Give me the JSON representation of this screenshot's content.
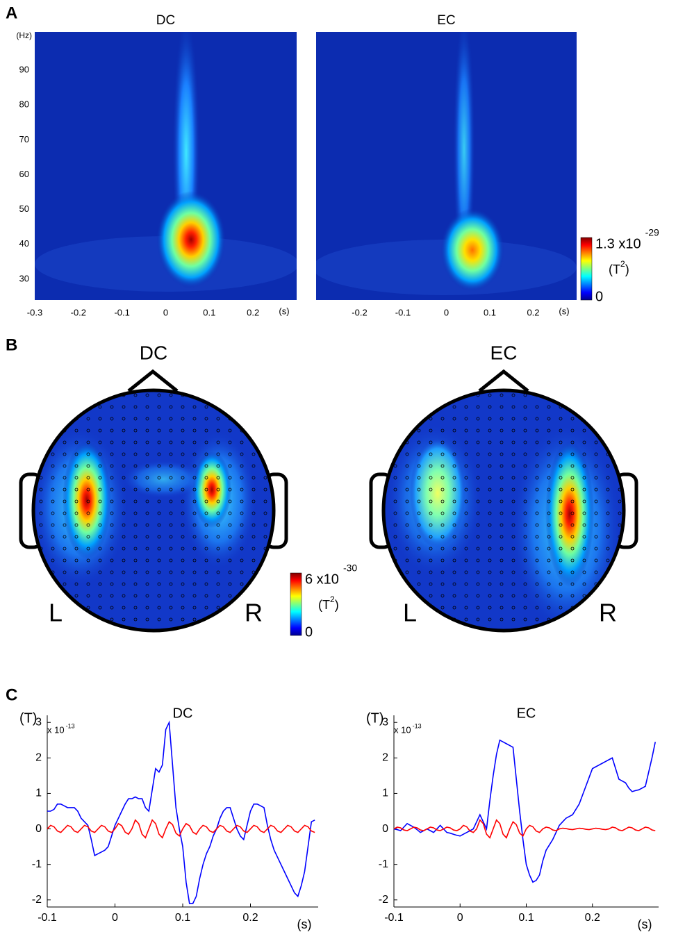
{
  "panel_labels": [
    "A",
    "B",
    "C"
  ],
  "chart_data": [
    {
      "type": "heatmap",
      "title": "DC",
      "xlim": [
        -0.3,
        0.3
      ],
      "ylim": [
        24,
        101
      ],
      "xticks": [
        -0.3,
        -0.2,
        -0.1,
        0,
        0.1,
        0.2
      ],
      "yticks": [
        30,
        40,
        50,
        60,
        70,
        80,
        90
      ],
      "xlabel": "(s)",
      "ylabel": "(Hz)"
    },
    {
      "type": "heatmap",
      "title": "EC",
      "xlim": [
        -0.3,
        0.3
      ],
      "ylim": [
        24,
        101
      ],
      "xticks": [
        -0.2,
        -0.1,
        0,
        0.1,
        0.2
      ],
      "xlabel": "(s)",
      "colorbar": {
        "max_label": "1.3 x10",
        "max_exponent": "-29",
        "unit": "(T",
        "unit_exponent": "2",
        "unit_close": ")",
        "min": 0
      }
    },
    {
      "type": "topomap",
      "title": "DC",
      "left_label": "L",
      "right_label": "R",
      "colorbar": {
        "max_label": "6 x10",
        "max_exponent": "-30",
        "unit": "(T",
        "unit_exponent": "2",
        "unit_close": ")",
        "min": 0
      }
    },
    {
      "type": "topomap",
      "title": "EC",
      "left_label": "L",
      "right_label": "R"
    },
    {
      "type": "line",
      "title": "DC",
      "ylabel": "(T)",
      "scale": "x 10",
      "scale_exponent": "-13",
      "xlabel": "(s)",
      "xlim": [
        -0.1,
        0.3
      ],
      "ylim": [
        -2.2,
        3.2
      ],
      "xticks": [
        -0.1,
        0,
        0.1,
        0.2
      ],
      "yticks": [
        -2,
        -1,
        0,
        1,
        2,
        3
      ],
      "x": [
        -0.1,
        -0.095,
        -0.09,
        -0.085,
        -0.08,
        -0.075,
        -0.07,
        -0.065,
        -0.06,
        -0.055,
        -0.05,
        -0.045,
        -0.04,
        -0.035,
        -0.03,
        -0.025,
        -0.02,
        -0.015,
        -0.01,
        -0.005,
        0,
        0.005,
        0.01,
        0.015,
        0.02,
        0.025,
        0.03,
        0.035,
        0.04,
        0.045,
        0.05,
        0.055,
        0.06,
        0.065,
        0.07,
        0.075,
        0.08,
        0.085,
        0.09,
        0.095,
        0.1,
        0.105,
        0.11,
        0.115,
        0.12,
        0.125,
        0.13,
        0.135,
        0.14,
        0.145,
        0.15,
        0.155,
        0.16,
        0.165,
        0.17,
        0.175,
        0.18,
        0.185,
        0.19,
        0.195,
        0.2,
        0.205,
        0.21,
        0.215,
        0.22,
        0.225,
        0.23,
        0.235,
        0.24,
        0.245,
        0.25,
        0.255,
        0.26,
        0.265,
        0.27,
        0.275,
        0.28,
        0.285,
        0.29,
        0.295
      ],
      "series": [
        {
          "color": "#0000ff",
          "values": [
            0.5,
            0.5,
            0.55,
            0.7,
            0.7,
            0.65,
            0.6,
            0.6,
            0.6,
            0.5,
            0.3,
            0.2,
            0.1,
            -0.3,
            -0.75,
            -0.7,
            -0.65,
            -0.6,
            -0.5,
            -0.2,
            0.1,
            0.3,
            0.5,
            0.7,
            0.85,
            0.85,
            0.9,
            0.85,
            0.85,
            0.6,
            0.5,
            1.1,
            1.7,
            1.6,
            1.8,
            2.8,
            3.0,
            1.8,
            0.6,
            0,
            -0.5,
            -1.5,
            -2.1,
            -2.1,
            -1.9,
            -1.4,
            -1.0,
            -0.7,
            -0.5,
            -0.2,
            0,
            0.3,
            0.5,
            0.6,
            0.6,
            0.3,
            0,
            -0.2,
            -0.3,
            0.1,
            0.5,
            0.7,
            0.7,
            0.65,
            0.6,
            0.1,
            -0.3,
            -0.6,
            -0.8,
            -1.0,
            -1.2,
            -1.4,
            -1.6,
            -1.8,
            -1.9,
            -1.6,
            -1.2,
            -0.5,
            0.2,
            0.25
          ]
        },
        {
          "color": "#ff0000",
          "values": [
            0,
            0.1,
            0.06,
            -0.06,
            -0.1,
            0,
            0.1,
            0.06,
            -0.06,
            -0.1,
            0,
            0.1,
            0.06,
            -0.06,
            -0.1,
            0,
            0.1,
            0.06,
            -0.06,
            -0.1,
            0,
            0.15,
            0.09,
            -0.09,
            -0.15,
            0,
            0.25,
            0.15,
            -0.15,
            -0.25,
            0,
            0.25,
            0.15,
            -0.15,
            -0.25,
            0,
            0.2,
            0.12,
            -0.12,
            -0.2,
            0,
            0.15,
            0.09,
            -0.09,
            -0.15,
            0,
            0.1,
            0.06,
            -0.06,
            -0.1,
            0,
            0.1,
            0.06,
            -0.06,
            -0.1,
            0,
            0.1,
            0.06,
            -0.06,
            -0.1,
            0,
            0.1,
            0.06,
            -0.06,
            -0.1,
            0,
            0.1,
            0.06,
            -0.06,
            -0.1,
            0,
            0.1,
            0.06,
            -0.06,
            -0.1,
            0,
            0.1,
            0.06,
            -0.06,
            -0.1
          ]
        }
      ]
    },
    {
      "type": "line",
      "title": "EC",
      "ylabel": "(T)",
      "scale": "x 10",
      "scale_exponent": "-13",
      "xlabel": "(s)",
      "xlim": [
        -0.1,
        0.3
      ],
      "ylim": [
        -2.2,
        3.2
      ],
      "xticks": [
        -0.1,
        0,
        0.1,
        0.2
      ],
      "yticks": [
        -2,
        -1,
        0,
        1,
        2,
        3
      ],
      "x": [
        -0.1,
        -0.095,
        -0.09,
        -0.085,
        -0.08,
        -0.075,
        -0.07,
        -0.065,
        -0.06,
        -0.055,
        -0.05,
        -0.045,
        -0.04,
        -0.035,
        -0.03,
        -0.025,
        -0.02,
        -0.015,
        -0.01,
        -0.005,
        0,
        0.005,
        0.01,
        0.015,
        0.02,
        0.025,
        0.03,
        0.035,
        0.04,
        0.045,
        0.05,
        0.055,
        0.06,
        0.065,
        0.07,
        0.075,
        0.08,
        0.085,
        0.09,
        0.095,
        0.1,
        0.105,
        0.11,
        0.115,
        0.12,
        0.125,
        0.13,
        0.135,
        0.14,
        0.145,
        0.15,
        0.155,
        0.16,
        0.165,
        0.17,
        0.175,
        0.18,
        0.185,
        0.19,
        0.195,
        0.2,
        0.205,
        0.21,
        0.215,
        0.22,
        0.225,
        0.23,
        0.235,
        0.24,
        0.245,
        0.25,
        0.255,
        0.26,
        0.265,
        0.27,
        0.275,
        0.28,
        0.285,
        0.29,
        0.295
      ],
      "series": [
        {
          "color": "#0000ff",
          "values": [
            0,
            -0.02,
            -0.05,
            0.05,
            0.15,
            0.1,
            0.05,
            -0.02,
            -0.1,
            -0.05,
            0,
            -0.05,
            -0.1,
            0,
            0.1,
            0,
            -0.1,
            -0.12,
            -0.15,
            -0.18,
            -0.2,
            -0.15,
            -0.1,
            -0.05,
            0,
            0.2,
            0.4,
            0.2,
            0,
            0.8,
            1.5,
            2.1,
            2.5,
            2.45,
            2.4,
            2.35,
            2.3,
            1.4,
            0.5,
            -0.3,
            -1.0,
            -1.3,
            -1.5,
            -1.45,
            -1.3,
            -0.9,
            -0.6,
            -0.45,
            -0.3,
            -0.1,
            0.1,
            0.2,
            0.3,
            0.35,
            0.4,
            0.55,
            0.7,
            0.95,
            1.2,
            1.45,
            1.7,
            1.75,
            1.8,
            1.85,
            1.9,
            1.95,
            2.0,
            1.7,
            1.4,
            1.35,
            1.3,
            1.15,
            1.05,
            1.08,
            1.1,
            1.15,
            1.2,
            1.6,
            2.0,
            2.45
          ]
        },
        {
          "color": "#ff0000",
          "values": [
            0,
            0.05,
            0.03,
            -0.03,
            -0.05,
            0,
            0.05,
            0.03,
            -0.03,
            -0.05,
            0,
            0.05,
            0.03,
            -0.03,
            -0.05,
            0,
            0.05,
            0.03,
            -0.03,
            -0.05,
            0,
            0.1,
            0.06,
            -0.06,
            -0.1,
            0,
            0.25,
            0.15,
            -0.15,
            -0.25,
            0,
            0.25,
            0.15,
            -0.15,
            -0.25,
            0,
            0.2,
            0.12,
            -0.12,
            -0.2,
            0,
            0.1,
            0.06,
            -0.06,
            -0.1,
            0,
            0.05,
            0.03,
            -0.03,
            -0.05,
            0,
            0.02,
            0.01,
            -0.01,
            -0.02,
            0,
            0.02,
            0.01,
            -0.01,
            -0.02,
            0,
            0.02,
            0.01,
            -0.01,
            -0.02,
            0,
            0.05,
            0.03,
            -0.03,
            -0.05,
            0,
            0.05,
            0.03,
            -0.03,
            -0.05,
            0,
            0.05,
            0.03,
            -0.03,
            -0.05
          ]
        }
      ]
    }
  ]
}
